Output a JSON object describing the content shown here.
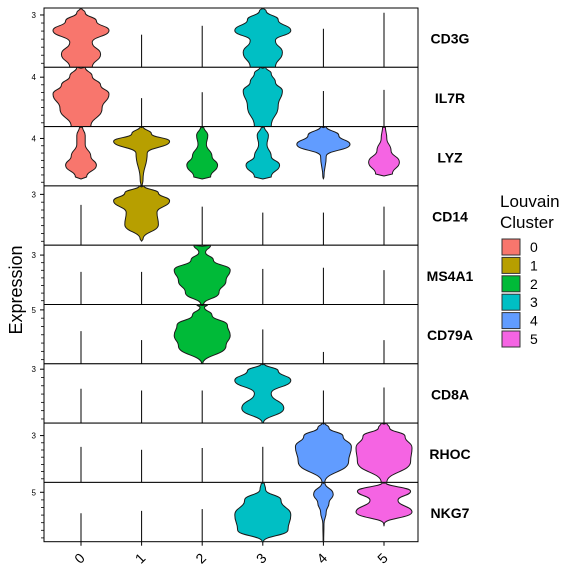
{
  "chart_data": {
    "type": "violin",
    "ylabel": "Expression",
    "categories": [
      "0",
      "1",
      "2",
      "3",
      "4",
      "5"
    ],
    "legend": {
      "title_lines": [
        "Louvain",
        "Cluster"
      ],
      "placement": "right",
      "items": [
        {
          "label": "0",
          "color": "#F8766D"
        },
        {
          "label": "1",
          "color": "#B79F00"
        },
        {
          "label": "2",
          "color": "#00BA38"
        },
        {
          "label": "3",
          "color": "#00BFC4"
        },
        {
          "label": "4",
          "color": "#619CFF"
        },
        {
          "label": "5",
          "color": "#F564E3"
        }
      ]
    },
    "panels": [
      {
        "gene": "CD3G",
        "tick": "3",
        "tick_value": 3,
        "ymax": 3.4,
        "violins": [
          {
            "cluster": "0",
            "shape": [
              [
                0,
                0.4
              ],
              [
                0.22,
                0.08
              ],
              [
                0.42,
                0.14
              ],
              [
                0.62,
                0.5
              ],
              [
                0.78,
                0.35
              ],
              [
                0.92,
                0.1
              ],
              [
                1,
                0
              ]
            ],
            "hw": [
              0.4,
              0.7,
              0.4,
              1,
              0.55,
              0.15,
              0.02
            ]
          },
          {
            "cluster": "1",
            "line": 0.55
          },
          {
            "cluster": "2",
            "line": 0.7
          },
          {
            "cluster": "3",
            "shape": [
              [
                0,
                0.45
              ],
              [
                0.25,
                0.08
              ],
              [
                0.45,
                0.14
              ],
              [
                0.62,
                0.5
              ],
              [
                0.8,
                0.32
              ],
              [
                0.95,
                0.08
              ],
              [
                1,
                0
              ]
            ],
            "hw": [
              0.45,
              0.7,
              0.45,
              1,
              0.55,
              0.12,
              0.02
            ]
          },
          {
            "cluster": "4",
            "line": 0.65
          },
          {
            "cluster": "5",
            "line": 0.92
          }
        ]
      },
      {
        "gene": "IL7R",
        "tick": "4",
        "tick_value": 4,
        "ymax": 4.8,
        "violins": [
          {
            "cluster": "0",
            "shape": [
              [
                0,
                0.3
              ],
              [
                0.3,
                0.08
              ],
              [
                0.55,
                0.1
              ],
              [
                0.7,
                0.45
              ],
              [
                0.85,
                0.15
              ],
              [
                1,
                0.02
              ]
            ],
            "hw": [
              0.35,
              0.75,
              1,
              0.7,
              0.4,
              0.15
            ]
          },
          {
            "cluster": "1",
            "line": 0.48
          },
          {
            "cluster": "2",
            "line": 0.58
          },
          {
            "cluster": "3",
            "shape": [
              [
                0,
                0.3
              ],
              [
                0.35,
                0.08
              ],
              [
                0.6,
                0.1
              ],
              [
                0.75,
                0.45
              ],
              [
                0.9,
                0.12
              ],
              [
                1,
                0.02
              ]
            ],
            "hw": [
              0.3,
              0.55,
              0.7,
              0.45,
              0.3,
              0.1
            ]
          },
          {
            "cluster": "4",
            "line": 0.6
          },
          {
            "cluster": "5",
            "line": 0.62
          }
        ]
      },
      {
        "gene": "LYZ",
        "tick": "4",
        "tick_value": 4,
        "ymax": 5.0,
        "violins": [
          {
            "cluster": "0",
            "shape": [
              [
                0.15,
                0.3
              ],
              [
                0.35,
                0.1
              ],
              [
                0.5,
                0.12
              ],
              [
                0.7,
                0.4
              ],
              [
                0.85,
                0.1
              ],
              [
                1,
                0.02
              ]
            ],
            "hw": [
              0.2,
              0.55,
              0.35,
              0.15,
              0.15,
              0.05
            ]
          },
          {
            "cluster": "1",
            "shape": [
              [
                0,
                0.02
              ],
              [
                0.1,
                0.4
              ],
              [
                0.55,
                0.2
              ],
              [
                0.75,
                0.05
              ],
              [
                0.88,
                0.02
              ],
              [
                1,
                0
              ]
            ],
            "hw": [
              0.02,
              0.05,
              0.2,
              1,
              0.35,
              0.05
            ]
          },
          {
            "cluster": "2",
            "shape": [
              [
                0.15,
                0.3
              ],
              [
                0.35,
                0.1
              ],
              [
                0.5,
                0.12
              ],
              [
                0.7,
                0.4
              ],
              [
                0.85,
                0.1
              ],
              [
                1,
                0.02
              ]
            ],
            "hw": [
              0.3,
              0.55,
              0.35,
              0.15,
              0.2,
              0.05
            ]
          },
          {
            "cluster": "3",
            "shape": [
              [
                0.15,
                0.3
              ],
              [
                0.35,
                0.1
              ],
              [
                0.5,
                0.12
              ],
              [
                0.7,
                0.4
              ],
              [
                0.85,
                0.1
              ],
              [
                1,
                0.02
              ]
            ],
            "hw": [
              0.3,
              0.6,
              0.3,
              0.15,
              0.2,
              0.05
            ]
          },
          {
            "cluster": "4",
            "shape": [
              [
                0.15,
                0.3
              ],
              [
                0.5,
                0.1
              ],
              [
                0.7,
                0.4
              ],
              [
                0.85,
                0.1
              ],
              [
                1,
                0.02
              ]
            ],
            "hw": [
              0.02,
              0.1,
              0.95,
              0.55,
              0.1
            ]
          },
          {
            "cluster": "5",
            "shape": [
              [
                0.2,
                0.3
              ],
              [
                0.4,
                0.1
              ],
              [
                0.6,
                0.12
              ],
              [
                0.8,
                0.4
              ],
              [
                1,
                0.02
              ]
            ],
            "hw": [
              0.3,
              0.55,
              0.25,
              0.1,
              0.05
            ]
          }
        ]
      },
      {
        "gene": "CD14",
        "tick": "3",
        "tick_value": 3,
        "ymax": 3.5,
        "violins": [
          {
            "cluster": "0",
            "line": 0.68
          },
          {
            "cluster": "1",
            "shape": [
              [
                0.1,
                0.4
              ],
              [
                0.35,
                0.15
              ],
              [
                0.55,
                0.15
              ],
              [
                0.75,
                0.45
              ],
              [
                0.88,
                0.1
              ],
              [
                1,
                0
              ]
            ],
            "hw": [
              0.05,
              0.6,
              0.55,
              1,
              0.6,
              0.08
            ]
          },
          {
            "cluster": "2",
            "line": 0.65
          },
          {
            "cluster": "3",
            "line": 0.55
          },
          {
            "cluster": "4",
            "line": 0.55
          },
          {
            "cluster": "5",
            "line": 0.65
          }
        ]
      },
      {
        "gene": "MS4A1",
        "tick": "3",
        "tick_value": 3,
        "ymax": 3.6,
        "violins": [
          {
            "cluster": "0",
            "line": 0.55
          },
          {
            "cluster": "1",
            "line": 0.55
          },
          {
            "cluster": "2",
            "shape": [
              [
                0,
                0.2
              ],
              [
                0.2,
                0.12
              ],
              [
                0.4,
                0.15
              ],
              [
                0.58,
                0.5
              ],
              [
                0.75,
                0.25
              ],
              [
                0.88,
                0.1
              ],
              [
                1,
                0.05
              ]
            ],
            "hw": [
              0.05,
              0.6,
              0.85,
              1,
              0.4,
              0.12,
              0.3
            ]
          },
          {
            "cluster": "3",
            "line": 0.6
          },
          {
            "cluster": "4",
            "line": 0.62
          },
          {
            "cluster": "5",
            "line": 0.58
          }
        ]
      },
      {
        "gene": "CD79A",
        "tick": "5",
        "tick_value": 5,
        "ymax": 5.5,
        "violins": [
          {
            "cluster": "0",
            "line": 0.55
          },
          {
            "cluster": "1",
            "line": 0.4
          },
          {
            "cluster": "2",
            "shape": [
              [
                0,
                0.2
              ],
              [
                0.3,
                0.15
              ],
              [
                0.48,
                0.15
              ],
              [
                0.65,
                0.5
              ],
              [
                0.82,
                0.2
              ],
              [
                0.95,
                0.08
              ],
              [
                1,
                0
              ]
            ],
            "hw": [
              0.02,
              0.85,
              1,
              0.9,
              0.35,
              0.08,
              0.2
            ]
          },
          {
            "cluster": "3",
            "line": 0.58
          },
          {
            "cluster": "4",
            "line": 0.2
          },
          {
            "cluster": "5",
            "line": 0.4
          }
        ]
      },
      {
        "gene": "CD8A",
        "tick": "3",
        "tick_value": 3,
        "ymax": 3.3,
        "violins": [
          {
            "cluster": "0",
            "line": 0.58
          },
          {
            "cluster": "1",
            "line": 0.55
          },
          {
            "cluster": "2",
            "line": 0.55
          },
          {
            "cluster": "3",
            "shape": [
              [
                0,
                0.3
              ],
              [
                0.25,
                0.1
              ],
              [
                0.5,
                0.2
              ],
              [
                0.72,
                0.4
              ],
              [
                0.88,
                0.12
              ],
              [
                1,
                0.02
              ]
            ],
            "hw": [
              0.02,
              0.75,
              0.3,
              1,
              0.55,
              0.05
            ]
          },
          {
            "cluster": "4",
            "line": 0.55
          },
          {
            "cluster": "5",
            "line": 0.6
          }
        ]
      },
      {
        "gene": "RHOC",
        "tick": "3",
        "tick_value": 3,
        "ymax": 3.8,
        "violins": [
          {
            "cluster": "0",
            "line": 0.6
          },
          {
            "cluster": "1",
            "line": 0.55
          },
          {
            "cluster": "2",
            "line": 0.58
          },
          {
            "cluster": "3",
            "line": 0.6
          },
          {
            "cluster": "4",
            "shape": [
              [
                0,
                0.2
              ],
              [
                0.35,
                0.12
              ],
              [
                0.6,
                0.15
              ],
              [
                0.78,
                0.5
              ],
              [
                0.92,
                0.15
              ],
              [
                1,
                0
              ]
            ],
            "hw": [
              0.05,
              0.9,
              1,
              0.7,
              0.2,
              0.05
            ]
          },
          {
            "cluster": "5",
            "shape": [
              [
                0,
                0.2
              ],
              [
                0.35,
                0.12
              ],
              [
                0.58,
                0.15
              ],
              [
                0.78,
                0.5
              ],
              [
                0.92,
                0.15
              ],
              [
                1,
                0
              ]
            ],
            "hw": [
              0.1,
              0.95,
              1,
              0.75,
              0.2,
              0.1
            ]
          }
        ]
      },
      {
        "gene": "NKG7",
        "tick": "5",
        "tick_value": 5,
        "ymax": 6.0,
        "violins": [
          {
            "cluster": "0",
            "line": 0.48
          },
          {
            "cluster": "1",
            "line": 0.52
          },
          {
            "cluster": "2",
            "line": 0.55
          },
          {
            "cluster": "3",
            "shape": [
              [
                0,
                0.2
              ],
              [
                0.2,
                0.1
              ],
              [
                0.45,
                0.2
              ],
              [
                0.7,
                0.35
              ],
              [
                0.88,
                0.12
              ],
              [
                1,
                0
              ]
            ],
            "hw": [
              0.02,
              0.9,
              1,
              0.65,
              0.1,
              0.05
            ]
          },
          {
            "cluster": "4",
            "shape": [
              [
                0,
                0.3
              ],
              [
                0.3,
                0.12
              ],
              [
                0.5,
                0.08
              ],
              [
                0.65,
                0.15
              ],
              [
                0.8,
                0.15
              ],
              [
                1,
                0.05
              ]
            ],
            "hw": [
              0.01,
              0.02,
              0.1,
              0.2,
              0.35,
              0.05
            ]
          },
          {
            "cluster": "5",
            "shape": [
              [
                0.3,
                0.3
              ],
              [
                0.5,
                0.12
              ],
              [
                0.7,
                0.12
              ],
              [
                0.85,
                0.3
              ],
              [
                1,
                0.02
              ]
            ],
            "hw": [
              0.01,
              1,
              0.5,
              0.95,
              0.05
            ]
          }
        ]
      }
    ]
  }
}
